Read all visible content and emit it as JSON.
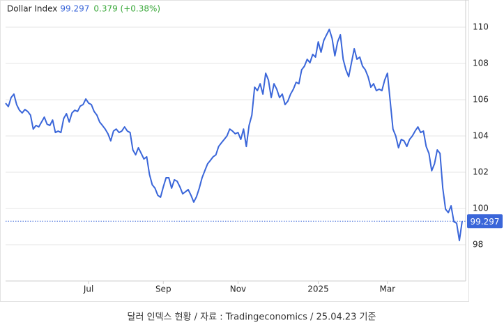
{
  "chart_data": {
    "type": "line",
    "title": "Dollar Index",
    "price": "99.297",
    "change": "0.379 (+0.38%)",
    "caption": "달러 인덱스 현황 / 자료 : Tradingeconomics / 25.04.23 기준",
    "series": [
      {
        "name": "Dollar Index",
        "color": "#3a66d9",
        "values": [
          105.81,
          105.62,
          106.12,
          106.31,
          105.73,
          105.42,
          105.27,
          105.46,
          105.35,
          105.15,
          104.38,
          104.58,
          104.5,
          104.77,
          105.04,
          104.65,
          104.58,
          104.88,
          104.19,
          104.27,
          104.19,
          104.96,
          105.23,
          104.77,
          105.27,
          105.42,
          105.35,
          105.65,
          105.73,
          106.04,
          105.81,
          105.73,
          105.35,
          105.15,
          104.77,
          104.58,
          104.38,
          104.12,
          103.73,
          104.27,
          104.38,
          104.19,
          104.27,
          104.5,
          104.27,
          104.19,
          103.23,
          102.96,
          103.35,
          103.04,
          102.73,
          102.85,
          101.88,
          101.31,
          101.12,
          100.73,
          100.62,
          101.19,
          101.69,
          101.69,
          101.12,
          101.58,
          101.5,
          101.19,
          100.81,
          100.92,
          101.04,
          100.73,
          100.35,
          100.65,
          101.12,
          101.69,
          102.08,
          102.46,
          102.65,
          102.85,
          102.96,
          103.42,
          103.62,
          103.81,
          104,
          104.38,
          104.27,
          104.12,
          104.19,
          103.81,
          104.38,
          103.42,
          104.58,
          105.15,
          106.69,
          106.5,
          106.88,
          106.31,
          107.46,
          107.08,
          106.12,
          106.88,
          106.58,
          106.12,
          106.31,
          105.73,
          105.92,
          106.31,
          106.58,
          106.96,
          106.88,
          107.65,
          107.85,
          108.23,
          108.04,
          108.5,
          108.35,
          109.19,
          108.62,
          109.27,
          109.58,
          109.88,
          109.38,
          108.42,
          109.19,
          109.58,
          108.23,
          107.65,
          107.27,
          108.04,
          108.81,
          108.23,
          108.35,
          107.85,
          107.65,
          107.27,
          106.69,
          106.88,
          106.5,
          106.58,
          106.5,
          107.08,
          107.46,
          105.92,
          104.38,
          104,
          103.35,
          103.81,
          103.73,
          103.42,
          103.81,
          104,
          104.27,
          104.5,
          104.19,
          104.27,
          103.42,
          103.04,
          102.08,
          102.46,
          103.23,
          103.04,
          101.12,
          99.96,
          99.77,
          100.15,
          99.27,
          99.19,
          98.23,
          99.297
        ]
      }
    ],
    "xlim": [
      0,
      165
    ],
    "xticks": [
      {
        "value": 30,
        "label": "Jul"
      },
      {
        "value": 57,
        "label": "Sep"
      },
      {
        "value": 84,
        "label": "Nov"
      },
      {
        "value": 113,
        "label": "2025"
      },
      {
        "value": 138,
        "label": "Mar"
      }
    ],
    "ylim": [
      96,
      111.5
    ],
    "yticks": [
      98,
      100,
      102,
      104,
      106,
      108,
      110
    ],
    "grid": true
  }
}
